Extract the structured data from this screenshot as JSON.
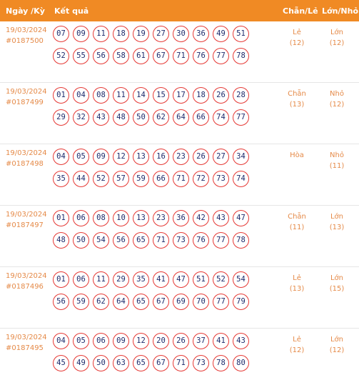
{
  "header": {
    "date": "Ngày /Kỳ",
    "result": "Kết quả",
    "chan_le": "Chẵn/Lẻ",
    "lon_nho": "Lớn/Nhỏ"
  },
  "rows": [
    {
      "date": "19/03/2024",
      "period": "#0187500",
      "numbers": [
        "07",
        "09",
        "11",
        "18",
        "19",
        "27",
        "30",
        "36",
        "49",
        "51",
        "52",
        "55",
        "56",
        "58",
        "61",
        "67",
        "71",
        "76",
        "77",
        "78"
      ],
      "chan_le": "Lẻ",
      "chan_le_count": "(12)",
      "lon_nho": "Lớn",
      "lon_nho_count": "(12)"
    },
    {
      "date": "19/03/2024",
      "period": "#0187499",
      "numbers": [
        "01",
        "04",
        "08",
        "11",
        "14",
        "15",
        "17",
        "18",
        "26",
        "28",
        "29",
        "32",
        "43",
        "48",
        "50",
        "62",
        "64",
        "66",
        "74",
        "77"
      ],
      "chan_le": "Chẵn",
      "chan_le_count": "(13)",
      "lon_nho": "Nhỏ",
      "lon_nho_count": "(12)"
    },
    {
      "date": "19/03/2024",
      "period": "#0187498",
      "numbers": [
        "04",
        "05",
        "09",
        "12",
        "13",
        "16",
        "23",
        "26",
        "27",
        "34",
        "35",
        "44",
        "52",
        "57",
        "59",
        "66",
        "71",
        "72",
        "73",
        "74"
      ],
      "chan_le": "Hòa",
      "chan_le_count": "",
      "lon_nho": "Nhỏ",
      "lon_nho_count": "(11)"
    },
    {
      "date": "19/03/2024",
      "period": "#0187497",
      "numbers": [
        "01",
        "06",
        "08",
        "10",
        "13",
        "23",
        "36",
        "42",
        "43",
        "47",
        "48",
        "50",
        "54",
        "56",
        "65",
        "71",
        "73",
        "76",
        "77",
        "78"
      ],
      "chan_le": "Chẵn",
      "chan_le_count": "(11)",
      "lon_nho": "Lớn",
      "lon_nho_count": "(13)"
    },
    {
      "date": "19/03/2024",
      "period": "#0187496",
      "numbers": [
        "01",
        "06",
        "11",
        "29",
        "35",
        "41",
        "47",
        "51",
        "52",
        "54",
        "56",
        "59",
        "62",
        "64",
        "65",
        "67",
        "69",
        "70",
        "77",
        "79"
      ],
      "chan_le": "Lẻ",
      "chan_le_count": "(13)",
      "lon_nho": "Lớn",
      "lon_nho_count": "(15)"
    },
    {
      "date": "19/03/2024",
      "period": "#0187495",
      "numbers": [
        "04",
        "05",
        "06",
        "09",
        "12",
        "20",
        "26",
        "37",
        "41",
        "43",
        "45",
        "49",
        "50",
        "63",
        "65",
        "67",
        "71",
        "73",
        "78",
        "80"
      ],
      "chan_le": "Lẻ",
      "chan_le_count": "(12)",
      "lon_nho": "Lớn",
      "lon_nho_count": "(12)"
    }
  ]
}
